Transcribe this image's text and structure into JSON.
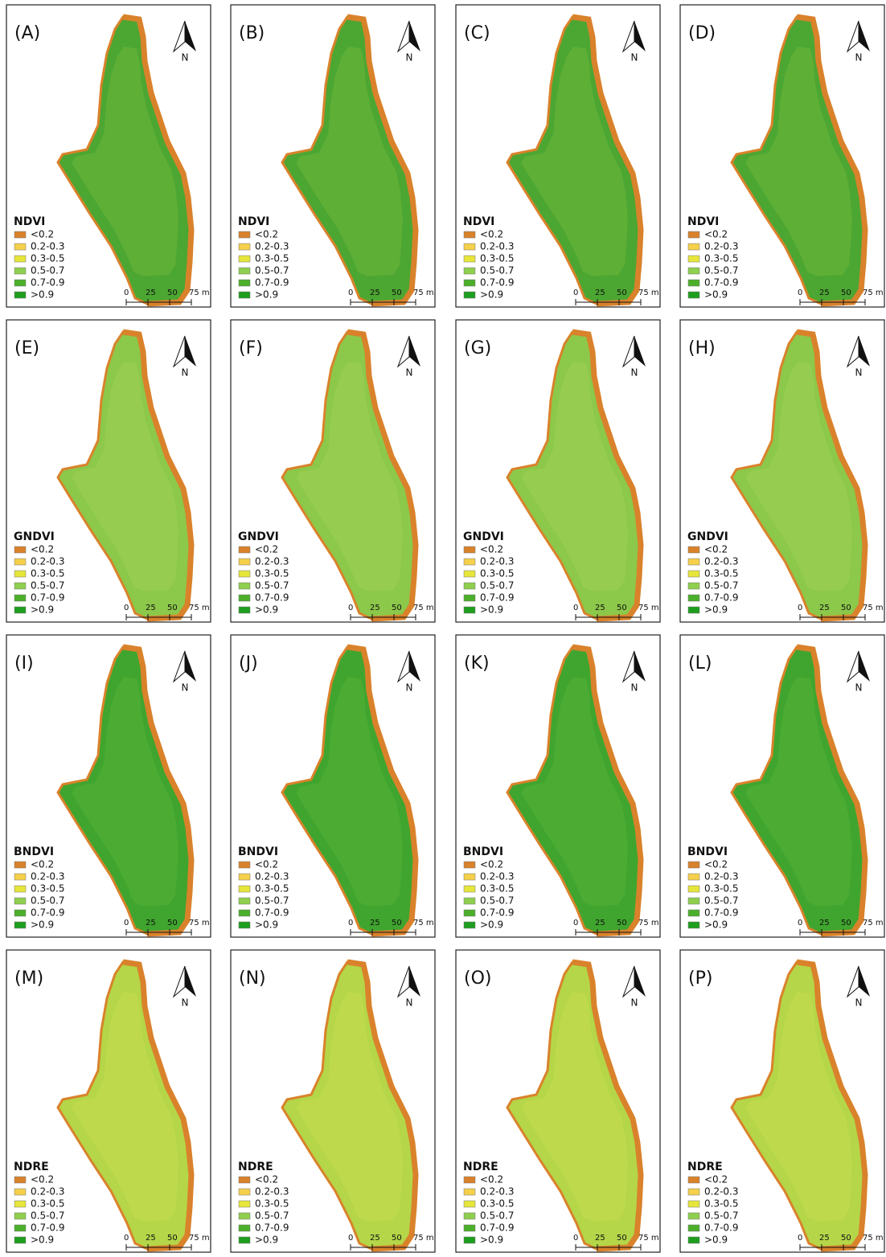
{
  "rows": [
    {
      "index": "NDVI",
      "panels": [
        "(A)",
        "(B)",
        "(C)",
        "(D)"
      ]
    },
    {
      "index": "GNDVI",
      "panels": [
        "(E)",
        "(F)",
        "(G)",
        "(H)"
      ]
    },
    {
      "index": "BNDVI",
      "panels": [
        "(I)",
        "(J)",
        "(K)",
        "(L)"
      ]
    },
    {
      "index": "NDRE",
      "panels": [
        "(M)",
        "(N)",
        "(O)",
        "(P)"
      ]
    }
  ],
  "legend": {
    "classes": [
      {
        "label": "<0.2",
        "color": "#d9822b"
      },
      {
        "label": "0.2-0.3",
        "color": "#f5d04a"
      },
      {
        "label": "0.3-0.5",
        "color": "#e6e63a"
      },
      {
        "label": "0.5-0.7",
        "color": "#8fcf4e"
      },
      {
        "label": "0.7-0.9",
        "color": "#4caf2a"
      },
      {
        "label": ">0.9",
        "color": "#1e9e1e"
      }
    ]
  },
  "scale_bar": {
    "labels": [
      "0",
      "25",
      "50",
      "75 m"
    ]
  },
  "north_arrow": {
    "label": "N"
  }
}
